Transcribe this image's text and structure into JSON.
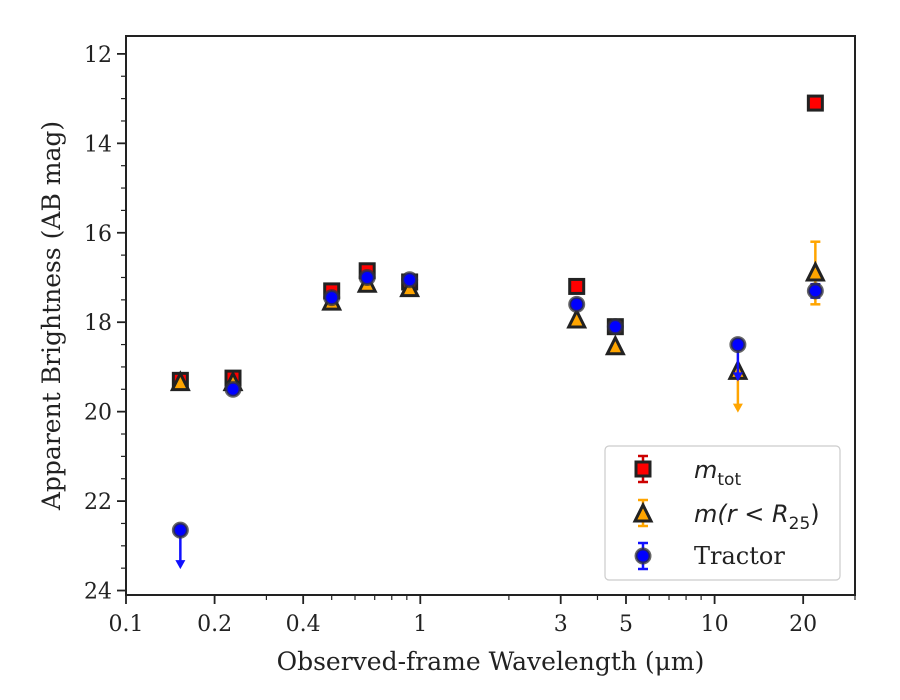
{
  "chart_data": {
    "type": "scatter",
    "xscale": "log",
    "xlim": [
      0.1,
      30
    ],
    "ylim": [
      24.1,
      11.6
    ],
    "y_inverted": true,
    "xlabel": "Observed-frame Wavelength (μm)",
    "ylabel": "Apparent Brightness (AB mag)",
    "xticks": [
      0.1,
      0.2,
      0.4,
      1,
      3,
      5,
      10,
      20
    ],
    "xtick_labels": [
      "0.1",
      "0.2",
      "0.4",
      "1",
      "3",
      "5",
      "10",
      "20"
    ],
    "yticks": [
      12,
      14,
      16,
      18,
      20,
      22,
      24
    ],
    "ytick_labels": [
      "12",
      "14",
      "16",
      "18",
      "20",
      "22",
      "24"
    ],
    "legend_position": "bottom-right",
    "series": [
      {
        "name": "m_tot",
        "legend_label": "m",
        "legend_sub": "tot",
        "marker": "square",
        "color": "#ff0000",
        "edge_color": "#222222",
        "error_color": "#cc0000",
        "points": [
          {
            "x": 0.153,
            "y": 19.3
          },
          {
            "x": 0.231,
            "y": 19.25
          },
          {
            "x": 0.5,
            "y": 17.3
          },
          {
            "x": 0.66,
            "y": 16.85
          },
          {
            "x": 0.92,
            "y": 17.1
          },
          {
            "x": 3.4,
            "y": 17.2
          },
          {
            "x": 4.6,
            "y": 18.1
          },
          {
            "x": 22,
            "y": 13.1
          }
        ]
      },
      {
        "name": "m(r<R25)",
        "legend_label": "m(r < R",
        "legend_sub": "25",
        "legend_close": ")",
        "marker": "triangle",
        "color": "#ffa500",
        "edge_color": "#222222",
        "error_color": "#ffa500",
        "points": [
          {
            "x": 0.153,
            "y": 19.35
          },
          {
            "x": 0.231,
            "y": 19.35
          },
          {
            "x": 0.5,
            "y": 17.55
          },
          {
            "x": 0.66,
            "y": 17.15
          },
          {
            "x": 0.92,
            "y": 17.25
          },
          {
            "x": 3.4,
            "y": 17.95
          },
          {
            "x": 4.6,
            "y": 18.55
          },
          {
            "x": 12,
            "y": 19.1,
            "upper_limit": true,
            "arrow_to": 20.0
          },
          {
            "x": 22,
            "y": 16.9,
            "err_minus": 0.7,
            "err_plus": 0.7
          }
        ]
      },
      {
        "name": "Tractor",
        "legend_label": "Tractor",
        "marker": "circle",
        "color": "#0000ff",
        "edge_color": "#333333",
        "error_color": "#1010ff",
        "points": [
          {
            "x": 0.153,
            "y": 22.65,
            "upper_limit": true,
            "arrow_to": 23.5
          },
          {
            "x": 0.231,
            "y": 19.5
          },
          {
            "x": 0.5,
            "y": 17.45
          },
          {
            "x": 0.66,
            "y": 17.0
          },
          {
            "x": 0.92,
            "y": 17.05
          },
          {
            "x": 3.4,
            "y": 17.6
          },
          {
            "x": 4.6,
            "y": 18.1
          },
          {
            "x": 12,
            "y": 18.5,
            "upper_limit": true,
            "arrow_to": 19.3
          },
          {
            "x": 22,
            "y": 17.3,
            "err_minus": 0.15,
            "err_plus": 0.15
          }
        ]
      }
    ]
  }
}
